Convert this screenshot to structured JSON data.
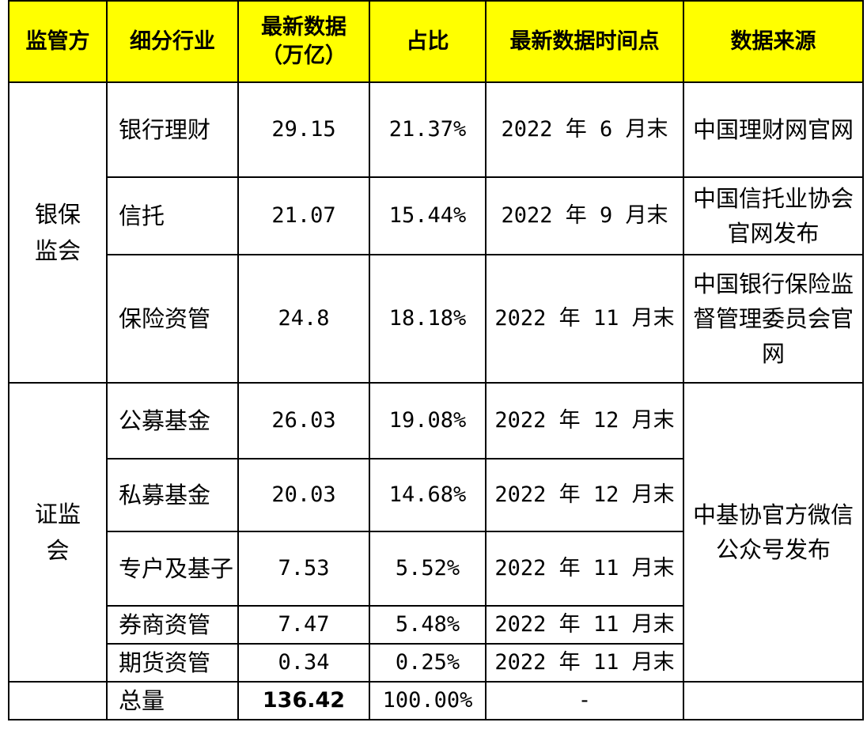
{
  "headers": [
    "监管方",
    "细分行业",
    "最新数据\n（万亿）",
    "占比",
    "最新数据时间点",
    "数据来源"
  ],
  "regulators": {
    "cbirc": "银保\n监会",
    "csrc": "证监\n会"
  },
  "rows": [
    {
      "industry": "银行理财",
      "value": "29.15",
      "share": "21.37%",
      "date": "2022 年 6 月末",
      "source": "中国理财网官网"
    },
    {
      "industry": "信托",
      "value": "21.07",
      "share": "15.44%",
      "date": "2022 年 9 月末",
      "source": "中国信托业协会官网发布"
    },
    {
      "industry": "保险资管",
      "value": "24.8",
      "share": "18.18%",
      "date": "2022 年 11 月末",
      "source": "中国银行保险监督管理委员会官网"
    },
    {
      "industry": "公募基金",
      "value": "26.03",
      "share": "19.08%",
      "date": "2022 年 12 月末"
    },
    {
      "industry": "私募基金",
      "value": "20.03",
      "share": "14.68%",
      "date": "2022 年 12 月末"
    },
    {
      "industry": "专户及基子",
      "value": "7.53",
      "share": "5.52%",
      "date": "2022 年 11 月末"
    },
    {
      "industry": "券商资管",
      "value": "7.47",
      "share": "5.48%",
      "date": "2022 年 11 月末"
    },
    {
      "industry": "期货资管",
      "value": "0.34",
      "share": "0.25%",
      "date": "2022 年 11 月末"
    }
  ],
  "csrc_source": "中基协官方微信公众号发布",
  "total": {
    "label": "总量",
    "value": "136.42",
    "share": "100.00%",
    "date": "-"
  }
}
